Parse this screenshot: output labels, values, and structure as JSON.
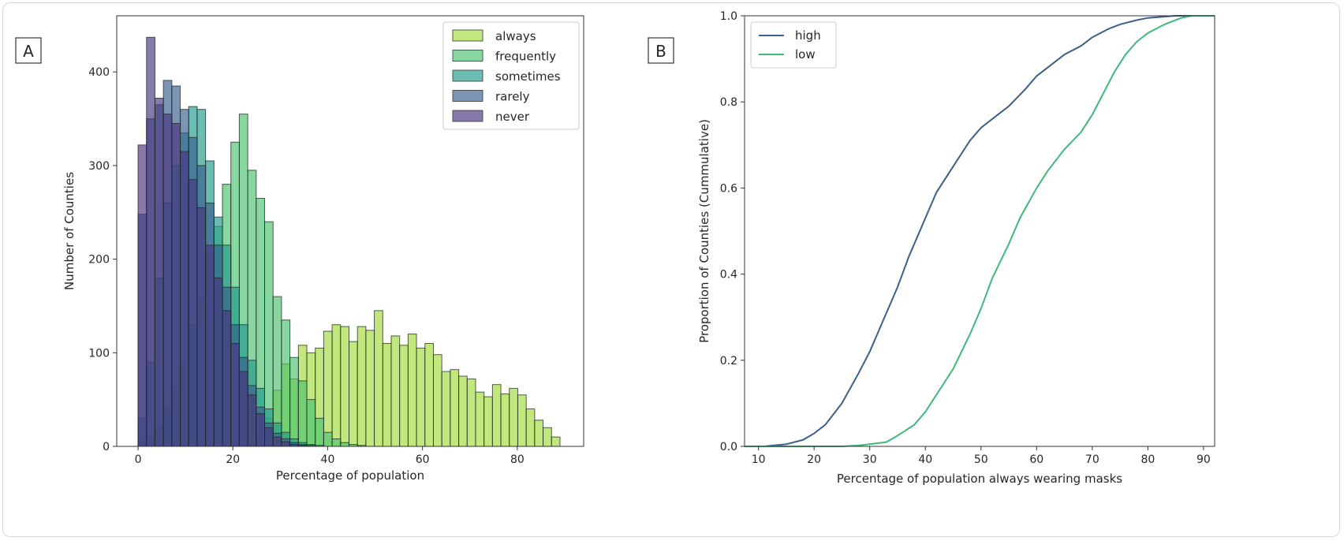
{
  "chart_data": [
    {
      "panel_label": "A",
      "type": "bar",
      "subtype": "overlaid histogram",
      "xlabel": "Percentage of population",
      "ylabel": "Number of Counties",
      "xlim": [
        -4.5,
        94
      ],
      "ylim": [
        0,
        460
      ],
      "xticks": [
        0,
        20,
        40,
        60,
        80
      ],
      "yticks": [
        0,
        100,
        200,
        300,
        400
      ],
      "grid": false,
      "legend_position": "top-right",
      "bin_start": 0,
      "bin_width": 1.78,
      "series": [
        {
          "name": "always",
          "color": "#a0da39",
          "values": [
            0,
            0,
            0,
            0,
            0,
            0,
            0,
            0,
            0,
            0,
            0,
            1,
            2,
            3,
            5,
            30,
            60,
            88,
            72,
            108,
            100,
            105,
            123,
            130,
            128,
            112,
            128,
            124,
            145,
            110,
            118,
            108,
            120,
            105,
            110,
            98,
            80,
            82,
            75,
            72,
            58,
            53,
            66,
            56,
            62,
            55,
            40,
            28,
            20,
            10
          ]
        },
        {
          "name": "frequently",
          "color": "#4ac16d",
          "values": [
            5,
            10,
            20,
            40,
            60,
            90,
            130,
            160,
            205,
            235,
            280,
            325,
            355,
            295,
            265,
            240,
            160,
            135,
            95,
            70,
            50,
            30,
            15,
            8,
            4,
            2,
            1,
            0,
            0,
            0,
            0,
            0,
            0,
            0,
            0,
            0,
            0,
            0,
            0,
            0,
            0,
            0,
            0,
            0,
            0,
            0,
            0,
            0,
            0,
            0
          ]
        },
        {
          "name": "sometimes",
          "color": "#1f988b",
          "values": [
            30,
            90,
            180,
            260,
            300,
            335,
            363,
            360,
            305,
            245,
            215,
            170,
            130,
            92,
            62,
            40,
            25,
            15,
            8,
            4,
            2,
            1,
            0,
            0,
            0,
            0,
            0,
            0,
            0,
            0,
            0,
            0,
            0,
            0,
            0,
            0,
            0,
            0,
            0,
            0,
            0,
            0,
            0,
            0,
            0,
            0,
            0,
            0,
            0,
            0
          ]
        },
        {
          "name": "rarely",
          "color": "#365c8d",
          "values": [
            248,
            350,
            365,
            391,
            385,
            360,
            330,
            300,
            260,
            215,
            170,
            130,
            95,
            65,
            42,
            25,
            14,
            8,
            4,
            2,
            1,
            0,
            0,
            0,
            0,
            0,
            0,
            0,
            0,
            0,
            0,
            0,
            0,
            0,
            0,
            0,
            0,
            0,
            0,
            0,
            0,
            0,
            0,
            0,
            0,
            0,
            0,
            0,
            0,
            0
          ]
        },
        {
          "name": "never",
          "color": "#46327e",
          "values": [
            322,
            437,
            372,
            355,
            345,
            315,
            285,
            255,
            215,
            180,
            145,
            110,
            80,
            55,
            35,
            20,
            10,
            5,
            2,
            1,
            0,
            0,
            0,
            0,
            0,
            0,
            0,
            0,
            0,
            0,
            0,
            0,
            0,
            0,
            0,
            0,
            0,
            0,
            0,
            0,
            0,
            0,
            0,
            0,
            0,
            0,
            0,
            0,
            0,
            0
          ]
        }
      ]
    },
    {
      "panel_label": "B",
      "type": "line",
      "subtype": "ecdf",
      "xlabel": "Percentage of population always wearing masks",
      "ylabel": "Proportion of Counties (Cummulative)",
      "xlim": [
        7.5,
        92
      ],
      "ylim": [
        0,
        1.0
      ],
      "xticks": [
        10,
        20,
        30,
        40,
        50,
        60,
        70,
        80,
        90
      ],
      "yticks": [
        0.0,
        0.2,
        0.4,
        0.6,
        0.8,
        1.0
      ],
      "grid": false,
      "legend_position": "top-left",
      "series": [
        {
          "name": "high",
          "color": "#3b5f8a",
          "x": [
            11,
            15,
            18,
            20,
            22,
            25,
            28,
            30,
            32,
            35,
            37,
            40,
            42,
            45,
            48,
            50,
            53,
            55,
            58,
            60,
            63,
            65,
            68,
            70,
            73,
            75,
            78,
            80,
            85
          ],
          "y": [
            0,
            0.005,
            0.015,
            0.03,
            0.05,
            0.1,
            0.17,
            0.22,
            0.28,
            0.37,
            0.44,
            0.53,
            0.59,
            0.65,
            0.71,
            0.74,
            0.77,
            0.79,
            0.83,
            0.86,
            0.89,
            0.91,
            0.93,
            0.95,
            0.97,
            0.98,
            0.99,
            0.995,
            1.0
          ]
        },
        {
          "name": "low",
          "color": "#3fb97a",
          "x": [
            25,
            28,
            30,
            33,
            35,
            38,
            40,
            42,
            45,
            48,
            50,
            52,
            55,
            57,
            60,
            62,
            65,
            68,
            70,
            72,
            74,
            76,
            78,
            80,
            83,
            86,
            88
          ],
          "y": [
            0,
            0.002,
            0.005,
            0.01,
            0.025,
            0.05,
            0.08,
            0.12,
            0.18,
            0.26,
            0.32,
            0.39,
            0.47,
            0.53,
            0.6,
            0.64,
            0.69,
            0.73,
            0.77,
            0.82,
            0.87,
            0.91,
            0.94,
            0.96,
            0.98,
            0.995,
            1.0
          ]
        }
      ]
    }
  ]
}
